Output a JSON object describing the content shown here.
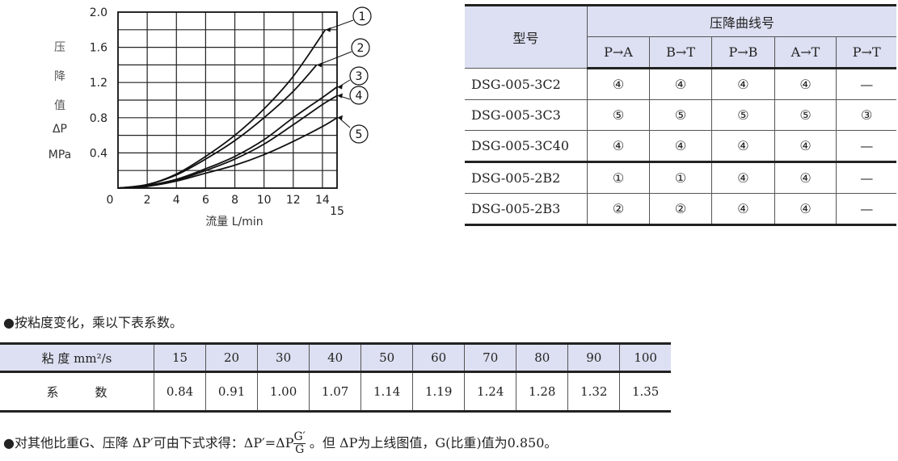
{
  "chart_data": {
    "type": "line",
    "xlabel": "流量 L/min",
    "ylabel_lines": [
      "压",
      "降",
      "值",
      "ΔP",
      "MPa"
    ],
    "xlim": [
      0,
      15
    ],
    "ylim": [
      0,
      2.0
    ],
    "x_ticks": [
      "0",
      "2",
      "4",
      "6",
      "8",
      "10",
      "12",
      "14",
      "15"
    ],
    "y_ticks": [
      "0.4",
      "0.8",
      "1.2",
      "1.6",
      "2.0"
    ],
    "grid": true,
    "series": [
      {
        "name": "1",
        "x": [
          0,
          2,
          4,
          6,
          8,
          10,
          12,
          14.2
        ],
        "y": [
          0,
          0.04,
          0.16,
          0.36,
          0.6,
          0.9,
          1.27,
          1.8
        ]
      },
      {
        "name": "2",
        "x": [
          0,
          2,
          4,
          6,
          8,
          10,
          12,
          13.6
        ],
        "y": [
          0,
          0.04,
          0.15,
          0.33,
          0.54,
          0.8,
          1.1,
          1.4
        ]
      },
      {
        "name": "3",
        "x": [
          0,
          2,
          4,
          6,
          8,
          10,
          12,
          14,
          15
        ],
        "y": [
          0,
          0.03,
          0.1,
          0.22,
          0.36,
          0.55,
          0.8,
          1.03,
          1.15
        ]
      },
      {
        "name": "4",
        "x": [
          0,
          2,
          4,
          6,
          8,
          10,
          12,
          14,
          15
        ],
        "y": [
          0,
          0.03,
          0.09,
          0.2,
          0.33,
          0.5,
          0.72,
          0.95,
          1.05
        ]
      },
      {
        "name": "5",
        "x": [
          0,
          2,
          4,
          6,
          8,
          10,
          12,
          14,
          15
        ],
        "y": [
          0,
          0.02,
          0.08,
          0.17,
          0.26,
          0.38,
          0.53,
          0.7,
          0.8
        ]
      }
    ]
  },
  "curve_table": {
    "model_header": "型号",
    "group_header": "压降曲线号",
    "columns": [
      "P→A",
      "B→T",
      "P→B",
      "A→T",
      "P→T"
    ],
    "rows": [
      {
        "model": "DSG-005-3C2",
        "values": [
          "④",
          "④",
          "④",
          "④",
          "—"
        ]
      },
      {
        "model": "DSG-005-3C3",
        "values": [
          "⑤",
          "⑤",
          "⑤",
          "⑤",
          "③"
        ]
      },
      {
        "model": "DSG-005-3C40",
        "values": [
          "④",
          "④",
          "④",
          "④",
          "—"
        ]
      },
      {
        "model": "DSG-005-2B2",
        "values": [
          "①",
          "①",
          "④",
          "④",
          "—"
        ]
      },
      {
        "model": "DSG-005-2B3",
        "values": [
          "②",
          "②",
          "④",
          "④",
          "—"
        ]
      }
    ]
  },
  "viscosity_note": "●按粘度变化，乘以下表系数。",
  "viscosity_table": {
    "header_label": "粘 度 mm²/s",
    "row_label": "系　　　数",
    "viscosities": [
      "15",
      "20",
      "30",
      "40",
      "50",
      "60",
      "70",
      "80",
      "90",
      "100"
    ],
    "coefficients": [
      "0.84",
      "0.91",
      "1.00",
      "1.07",
      "1.14",
      "1.19",
      "1.24",
      "1.28",
      "1.32",
      "1.35"
    ]
  },
  "gravity_note": {
    "prefix": "●对其他比重G、压降 ΔP′可由下式求得：ΔP′=ΔP",
    "numerator": "G′",
    "denominator": "G",
    "suffix": " 。但 ΔP为上线图值，G(比重)值为0.850。"
  },
  "colors": {
    "header_bg": "#dde0f2",
    "line": "#111111"
  }
}
